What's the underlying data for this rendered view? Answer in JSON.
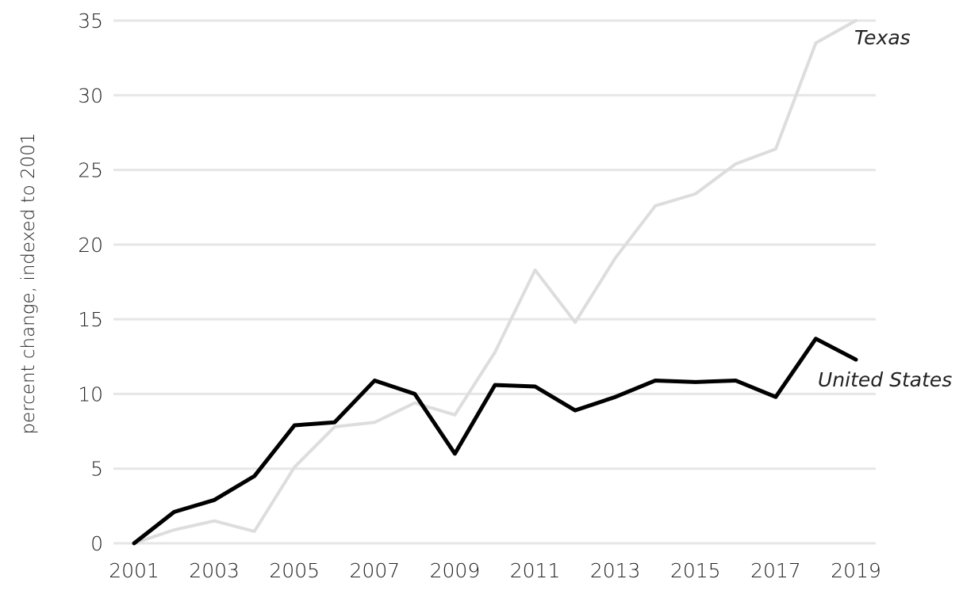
{
  "chart_data": {
    "type": "line",
    "title": "",
    "xlabel": "",
    "ylabel": "percent change, indexed to 2001",
    "x": [
      2001,
      2002,
      2003,
      2004,
      2005,
      2006,
      2007,
      2008,
      2009,
      2010,
      2011,
      2012,
      2013,
      2014,
      2015,
      2016,
      2017,
      2018,
      2019
    ],
    "xlim": [
      2001,
      2019
    ],
    "ylim": [
      0,
      35
    ],
    "x_ticks": [
      "2001",
      "2003",
      "2005",
      "2007",
      "2009",
      "2011",
      "2013",
      "2015",
      "2017",
      "2019"
    ],
    "y_ticks": [
      "0",
      "5",
      "10",
      "15",
      "20",
      "25",
      "30",
      "35"
    ],
    "grid": true,
    "legend": "none (direct labels at line ends)",
    "series": [
      {
        "name": "Texas",
        "color": "#dddddd",
        "values": [
          0,
          0.9,
          1.5,
          0.8,
          5.1,
          7.8,
          8.1,
          9.4,
          8.6,
          12.8,
          18.3,
          14.8,
          19.1,
          22.6,
          23.4,
          25.4,
          26.4,
          33.5,
          35.0
        ]
      },
      {
        "name": "United States",
        "color": "#000000",
        "values": [
          0,
          2.1,
          2.9,
          4.5,
          7.9,
          8.1,
          10.9,
          10.0,
          6.0,
          10.6,
          10.5,
          8.9,
          9.8,
          10.9,
          10.8,
          10.9,
          9.8,
          13.7,
          12.3
        ]
      }
    ]
  }
}
